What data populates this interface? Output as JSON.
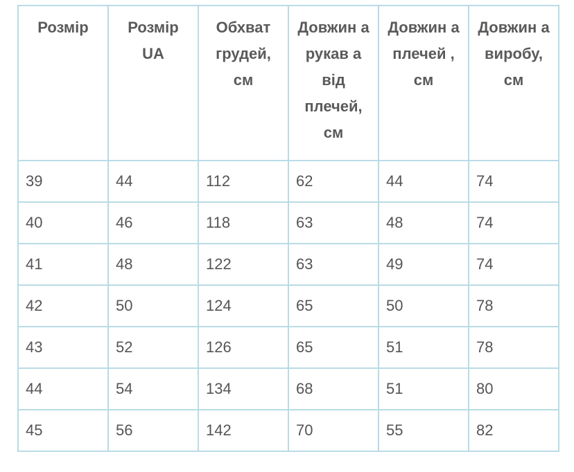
{
  "table": {
    "headers": [
      "Розмір",
      "Розмір UA",
      "Обхват грудей, см",
      "Довжин а рукав а від плечей, см",
      "Довжин а плечей , см",
      "Довжин а виробу, см"
    ],
    "rows": [
      [
        "39",
        "44",
        "112",
        "62",
        "44",
        "74"
      ],
      [
        "40",
        "46",
        "118",
        "63",
        "48",
        "74"
      ],
      [
        "41",
        "48",
        "122",
        "63",
        "49",
        "74"
      ],
      [
        "42",
        "50",
        "124",
        "65",
        "50",
        "78"
      ],
      [
        "43",
        "52",
        "126",
        "65",
        "51",
        "78"
      ],
      [
        "44",
        "54",
        "134",
        "68",
        "51",
        "80"
      ],
      [
        "45",
        "56",
        "142",
        "70",
        "55",
        "82"
      ]
    ]
  },
  "colors": {
    "border": "#b9dbe6",
    "text": "#555555"
  }
}
